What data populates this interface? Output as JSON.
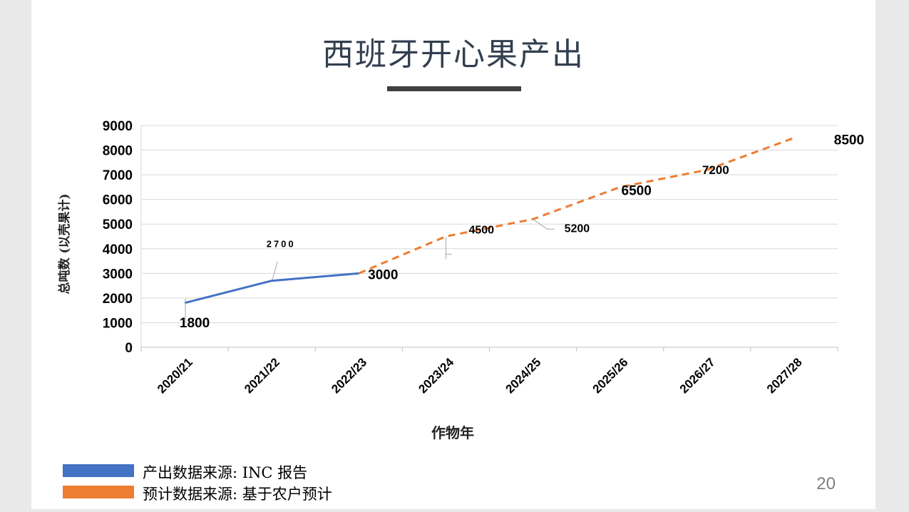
{
  "slide": {
    "title": "西班牙开心果产出",
    "page_number": "20"
  },
  "legend": [
    {
      "label": "产出数据来源: INC 报告",
      "color": "#4472c4"
    },
    {
      "label": "预计数据来源: 基于农户预计",
      "color": "#ed7d31"
    }
  ],
  "chart_data": {
    "type": "line",
    "title": "",
    "xlabel": "作物年",
    "ylabel": "总吨数 (以壳果计)",
    "categories": [
      "2020/21",
      "2021/22",
      "2022/23",
      "2023/24",
      "2024/25",
      "2025/26",
      "2026/27",
      "2027/28"
    ],
    "ylim": [
      0,
      9000
    ],
    "ytick_step": 1000,
    "grid": true,
    "series": [
      {
        "values": [
          1800,
          2700,
          3000,
          null,
          null,
          null,
          null,
          null
        ],
        "color": "#4472c4",
        "style": "solid"
      },
      {
        "values": [
          null,
          null,
          3000,
          4500,
          5200,
          6500,
          7200,
          8500
        ],
        "color": "#ed7d31",
        "style": "dashed"
      }
    ],
    "data_labels": [
      "1800",
      "2700",
      "3000",
      "4500",
      "5200",
      "6500",
      "7200",
      "8500"
    ]
  }
}
